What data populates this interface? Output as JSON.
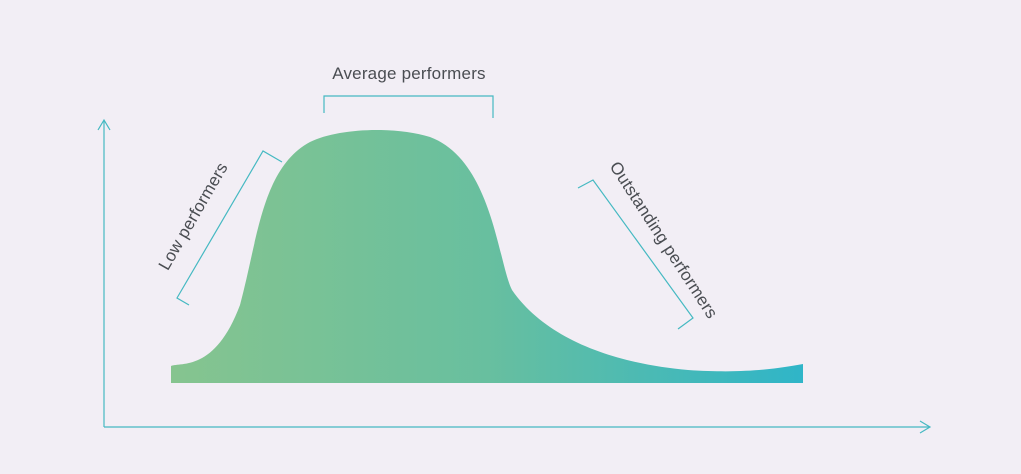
{
  "colors": {
    "background": "#f2eef5",
    "curve_start": "#86c48f",
    "curve_mid": "#68bf9f",
    "curve_end": "#2fb5c8",
    "axis": "#45b9c2",
    "bracket": "#45b9c2",
    "text": "#4a4d52"
  },
  "labels": {
    "low": "Low performers",
    "average": "Average performers",
    "outstanding": "Outstanding performers"
  },
  "icons": {
    "x_axis_arrow": "arrow-right-icon",
    "y_axis_arrow": "arrow-up-icon"
  }
}
